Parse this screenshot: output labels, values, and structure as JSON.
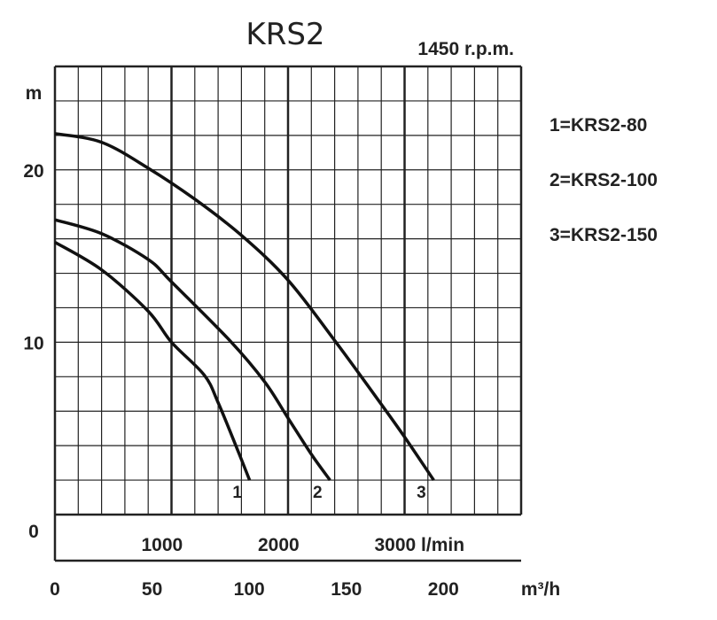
{
  "chart_data": {
    "type": "line",
    "title": "KRS2",
    "subtitle": "1450 r.p.m.",
    "ylabel": "m",
    "xlabel_primary": "l/min",
    "xlabel_secondary": "m³/h",
    "xlim": [
      0,
      4000
    ],
    "ylim": [
      0,
      26
    ],
    "grid": true,
    "y_ticks": [
      {
        "value": 0,
        "label": "0"
      },
      {
        "value": 10,
        "label": "10"
      },
      {
        "value": 20,
        "label": "20"
      }
    ],
    "x_ticks_lmin": [
      {
        "value": 1000,
        "label": "1000"
      },
      {
        "value": 2000,
        "label": "2000"
      },
      {
        "value": 3000,
        "label": "3000 l/min"
      }
    ],
    "x_ticks_m3h": [
      {
        "value": 0,
        "label": "0"
      },
      {
        "value": 50,
        "label": "50"
      },
      {
        "value": 100,
        "label": "100"
      },
      {
        "value": 150,
        "label": "150"
      },
      {
        "value": 200,
        "label": "200"
      },
      {
        "value": 240,
        "label": "m³/h"
      }
    ],
    "legend": [
      "1=KRS2-80",
      "2=KRS2-100",
      "3=KRS2-150"
    ],
    "legend_position": "right",
    "series": [
      {
        "name": "1",
        "x": [
          0,
          400,
          800,
          1000,
          1280,
          1400,
          1570,
          1670
        ],
        "y": [
          15.8,
          14.2,
          11.8,
          10.0,
          8.1,
          6.5,
          3.7,
          2.0
        ]
      },
      {
        "name": "2",
        "x": [
          0,
          400,
          800,
          1000,
          1500,
          1800,
          2000,
          2200,
          2360
        ],
        "y": [
          17.1,
          16.3,
          14.8,
          13.5,
          10.1,
          7.7,
          5.6,
          3.5,
          2.0
        ]
      },
      {
        "name": "3",
        "x": [
          0,
          400,
          800,
          1200,
          1600,
          2000,
          2400,
          2800,
          3000,
          3250
        ],
        "y": [
          22.1,
          21.6,
          20.1,
          18.3,
          16.2,
          13.6,
          10.1,
          6.4,
          4.5,
          2.0
        ]
      }
    ]
  }
}
